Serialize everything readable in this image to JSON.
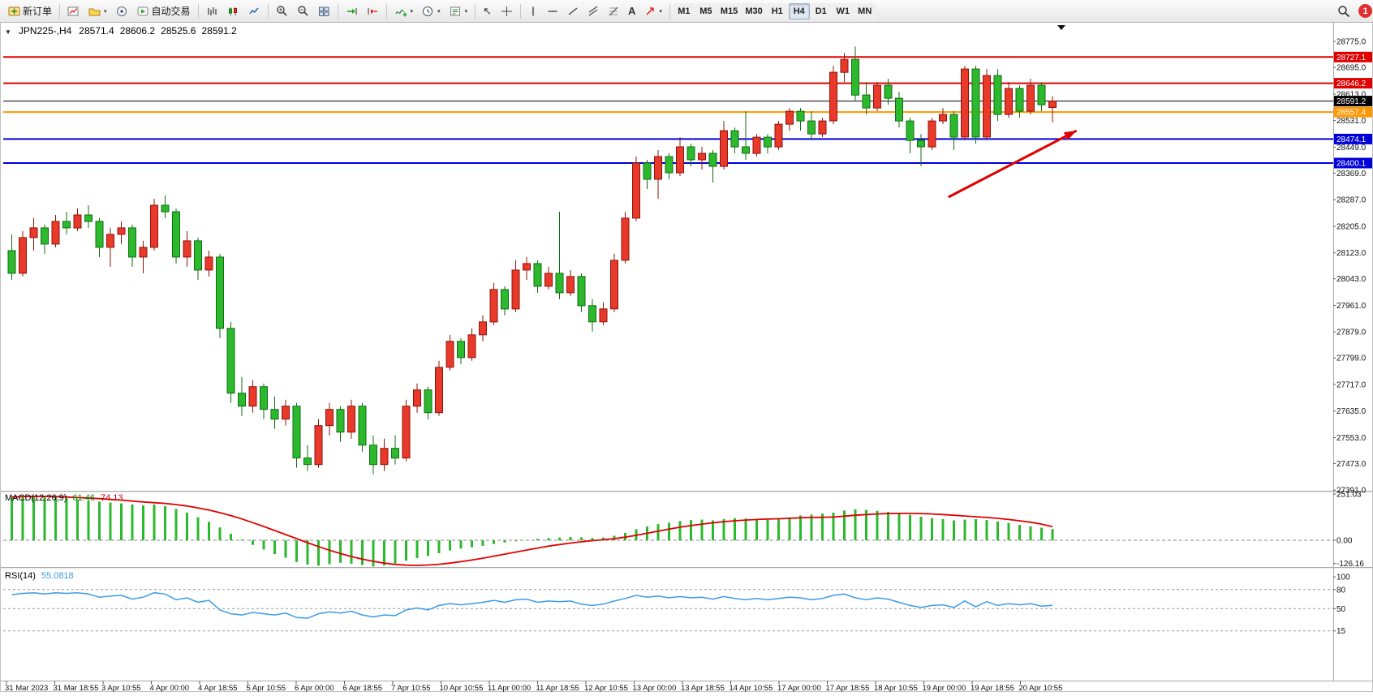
{
  "toolbar": {
    "new_order_label": "新订单",
    "auto_trading_label": "自动交易",
    "timeframes": [
      "M1",
      "M5",
      "M15",
      "M30",
      "H1",
      "H4",
      "D1",
      "W1",
      "MN"
    ],
    "active_timeframe": "H4",
    "notification_count": "1"
  },
  "chart": {
    "symbol_period": "JPN225-,H4",
    "open": "28571.4",
    "high": "28606.2",
    "low": "28525.6",
    "close": "28591.2"
  },
  "indicators": {
    "macd": {
      "name": "MACD(12,26,9)",
      "value1": "61.46",
      "value2": "74.13"
    },
    "rsi": {
      "name": "RSI(14)",
      "value": "55.0818"
    }
  },
  "chart_data": {
    "type": "candlestick",
    "symbol": "JPN225-",
    "timeframe": "H4",
    "colors": {
      "up": "#e8392b",
      "up_border": "#8f140a",
      "down": "#2db92d",
      "down_border": "#0f6e12",
      "macd_hist": "#2db92d",
      "macd_signal": "#e00000",
      "rsi": "#3d9ae8",
      "arrow": "#e00000"
    },
    "price_axis": {
      "max": 28833,
      "min": 27389,
      "ticks": [
        "28775.0",
        "28695.0",
        "28613.0",
        "28531.0",
        "28449.0",
        "28369.0",
        "28287.0",
        "28205.0",
        "28123.0",
        "28043.0",
        "27961.0",
        "27879.0",
        "27799.0",
        "27717.0",
        "27635.0",
        "27553.0",
        "27473.0",
        "27391.0"
      ]
    },
    "hlines": [
      {
        "price": 28727.1,
        "label": "28727.1",
        "color": "#e00000",
        "width": 2
      },
      {
        "price": 28646.2,
        "label": "28646.2",
        "color": "#e00000",
        "width": 2
      },
      {
        "price": 28591.2,
        "label": "28591.2",
        "color": "#000000",
        "width": 1
      },
      {
        "price": 28557.4,
        "label": "28557.4",
        "color": "#ff9800",
        "width": 2
      },
      {
        "price": 28474.1,
        "label": "28474.1",
        "color": "#0000d8",
        "width": 2
      },
      {
        "price": 28400.1,
        "label": "28400.1",
        "color": "#0000d8",
        "width": 2
      }
    ],
    "candles": [
      [
        28130,
        28180,
        28040,
        28060
      ],
      [
        28060,
        28190,
        28050,
        28170
      ],
      [
        28170,
        28230,
        28130,
        28200
      ],
      [
        28200,
        28210,
        28120,
        28150
      ],
      [
        28150,
        28240,
        28140,
        28220
      ],
      [
        28220,
        28250,
        28180,
        28200
      ],
      [
        28200,
        28260,
        28190,
        28240
      ],
      [
        28240,
        28270,
        28200,
        28220
      ],
      [
        28220,
        28230,
        28110,
        28140
      ],
      [
        28140,
        28200,
        28080,
        28180
      ],
      [
        28180,
        28220,
        28150,
        28200
      ],
      [
        28200,
        28210,
        28080,
        28110
      ],
      [
        28110,
        28160,
        28060,
        28140
      ],
      [
        28140,
        28290,
        28130,
        28270
      ],
      [
        28270,
        28300,
        28230,
        28250
      ],
      [
        28250,
        28260,
        28090,
        28110
      ],
      [
        28110,
        28190,
        28080,
        28160
      ],
      [
        28160,
        28170,
        28040,
        28070
      ],
      [
        28070,
        28130,
        28050,
        28110
      ],
      [
        28110,
        28120,
        27860,
        27890
      ],
      [
        27890,
        27910,
        27660,
        27690
      ],
      [
        27690,
        27740,
        27620,
        27650
      ],
      [
        27650,
        27730,
        27630,
        27710
      ],
      [
        27710,
        27720,
        27610,
        27640
      ],
      [
        27640,
        27680,
        27580,
        27610
      ],
      [
        27610,
        27670,
        27590,
        27650
      ],
      [
        27650,
        27660,
        27460,
        27490
      ],
      [
        27490,
        27530,
        27450,
        27470
      ],
      [
        27470,
        27610,
        27460,
        27590
      ],
      [
        27590,
        27660,
        27560,
        27640
      ],
      [
        27640,
        27650,
        27540,
        27570
      ],
      [
        27570,
        27670,
        27550,
        27650
      ],
      [
        27650,
        27660,
        27510,
        27530
      ],
      [
        27530,
        27560,
        27440,
        27470
      ],
      [
        27470,
        27550,
        27450,
        27520
      ],
      [
        27520,
        27560,
        27470,
        27490
      ],
      [
        27490,
        27670,
        27480,
        27650
      ],
      [
        27650,
        27720,
        27630,
        27700
      ],
      [
        27700,
        27710,
        27610,
        27630
      ],
      [
        27630,
        27790,
        27620,
        27770
      ],
      [
        27770,
        27870,
        27760,
        27850
      ],
      [
        27850,
        27860,
        27780,
        27800
      ],
      [
        27800,
        27890,
        27790,
        27870
      ],
      [
        27870,
        27930,
        27850,
        27910
      ],
      [
        27910,
        28030,
        27900,
        28010
      ],
      [
        28010,
        28020,
        27930,
        27950
      ],
      [
        27950,
        28100,
        27940,
        28070
      ],
      [
        28070,
        28110,
        28040,
        28090
      ],
      [
        28090,
        28100,
        28000,
        28020
      ],
      [
        28020,
        28080,
        28010,
        28060
      ],
      [
        28060,
        28250,
        27980,
        28000
      ],
      [
        28000,
        28070,
        27990,
        28050
      ],
      [
        28050,
        28060,
        27940,
        27960
      ],
      [
        27960,
        27980,
        27880,
        27910
      ],
      [
        27910,
        27970,
        27900,
        27950
      ],
      [
        27950,
        28120,
        27940,
        28100
      ],
      [
        28100,
        28250,
        28090,
        28230
      ],
      [
        28230,
        28420,
        28220,
        28400
      ],
      [
        28400,
        28410,
        28320,
        28350
      ],
      [
        28350,
        28440,
        28290,
        28420
      ],
      [
        28420,
        28430,
        28350,
        28370
      ],
      [
        28370,
        28480,
        28360,
        28450
      ],
      [
        28450,
        28460,
        28390,
        28410
      ],
      [
        28410,
        28450,
        28380,
        28430
      ],
      [
        28430,
        28440,
        28340,
        28390
      ],
      [
        28390,
        28530,
        28380,
        28500
      ],
      [
        28500,
        28510,
        28430,
        28450
      ],
      [
        28450,
        28560,
        28410,
        28430
      ],
      [
        28430,
        28490,
        28420,
        28480
      ],
      [
        28480,
        28490,
        28430,
        28450
      ],
      [
        28450,
        28530,
        28440,
        28520
      ],
      [
        28520,
        28570,
        28500,
        28560
      ],
      [
        28560,
        28570,
        28500,
        28530
      ],
      [
        28530,
        28560,
        28470,
        28490
      ],
      [
        28490,
        28540,
        28480,
        28530
      ],
      [
        28530,
        28700,
        28520,
        28680
      ],
      [
        28680,
        28740,
        28650,
        28720
      ],
      [
        28720,
        28760,
        28590,
        28610
      ],
      [
        28610,
        28650,
        28550,
        28570
      ],
      [
        28570,
        28650,
        28560,
        28640
      ],
      [
        28640,
        28660,
        28580,
        28600
      ],
      [
        28600,
        28620,
        28510,
        28530
      ],
      [
        28530,
        28540,
        28430,
        28470
      ],
      [
        28470,
        28490,
        28390,
        28450
      ],
      [
        28450,
        28540,
        28440,
        28530
      ],
      [
        28530,
        28570,
        28520,
        28550
      ],
      [
        28550,
        28560,
        28440,
        28480
      ],
      [
        28480,
        28700,
        28470,
        28690
      ],
      [
        28690,
        28700,
        28460,
        28480
      ],
      [
        28480,
        28690,
        28470,
        28670
      ],
      [
        28670,
        28690,
        28530,
        28550
      ],
      [
        28550,
        28650,
        28540,
        28630
      ],
      [
        28630,
        28640,
        28540,
        28560
      ],
      [
        28560,
        28660,
        28550,
        28640
      ],
      [
        28640,
        28650,
        28560,
        28580
      ],
      [
        28571.4,
        28606.2,
        28525.6,
        28591.2
      ]
    ],
    "macd": {
      "max": 260,
      "min": -145,
      "ticks": [
        {
          "v": 251.03,
          "label": "251.03"
        },
        {
          "v": 0,
          "label": "0.00"
        },
        {
          "v": -126.16,
          "label": "-126.16"
        }
      ],
      "histogram": [
        230,
        238,
        242,
        240,
        235,
        228,
        222,
        215,
        210,
        205,
        200,
        195,
        190,
        195,
        185,
        170,
        150,
        125,
        100,
        70,
        35,
        5,
        -25,
        -50,
        -75,
        -95,
        -118,
        -132,
        -138,
        -130,
        -122,
        -127,
        -134,
        -142,
        -136,
        -126,
        -111,
        -96,
        -85,
        -70,
        -55,
        -45,
        -38,
        -30,
        -20,
        -12,
        -5,
        2,
        8,
        12,
        15,
        18,
        16,
        12,
        15,
        25,
        40,
        60,
        75,
        88,
        95,
        105,
        110,
        112,
        108,
        115,
        120,
        118,
        115,
        112,
        118,
        125,
        135,
        140,
        145,
        150,
        162,
        168,
        165,
        160,
        155,
        148,
        138,
        128,
        120,
        115,
        108,
        112,
        115,
        110,
        102,
        94,
        84,
        76,
        68,
        61.46
      ],
      "signal": [
        235,
        237,
        238,
        238,
        237,
        235,
        232,
        229,
        226,
        222,
        218,
        213,
        208,
        204,
        200,
        194,
        186,
        176,
        164,
        150,
        134,
        116,
        96,
        75,
        53,
        31,
        9,
        -13,
        -34,
        -54,
        -72,
        -88,
        -102,
        -114,
        -124,
        -131,
        -135,
        -136,
        -134,
        -130,
        -124,
        -116,
        -107,
        -97,
        -86,
        -75,
        -64,
        -53,
        -42,
        -32,
        -23,
        -15,
        -8,
        -2,
        3,
        9,
        17,
        27,
        38,
        50,
        61,
        71,
        80,
        88,
        95,
        101,
        106,
        110,
        113,
        115,
        117,
        119,
        122,
        124,
        125,
        126,
        131,
        136,
        140,
        143,
        145,
        146,
        146,
        145,
        143,
        140,
        136,
        132,
        128,
        124,
        119,
        113,
        106,
        98,
        88,
        74.13
      ]
    },
    "rsi": {
      "max": 113,
      "min": -62,
      "levels": [
        {
          "v": 100,
          "label": "100",
          "dash": false
        },
        {
          "v": 80,
          "label": "80",
          "dash": true
        },
        {
          "v": 50,
          "label": "50",
          "dash": true
        },
        {
          "v": 15,
          "label": "15",
          "dash": true
        }
      ],
      "values": [
        72,
        74,
        75,
        73,
        75,
        74,
        75,
        73,
        68,
        70,
        71,
        65,
        68,
        75,
        73,
        64,
        67,
        60,
        63,
        48,
        42,
        40,
        44,
        42,
        40,
        43,
        36,
        35,
        42,
        45,
        43,
        46,
        40,
        37,
        40,
        39,
        48,
        51,
        48,
        55,
        58,
        56,
        58,
        60,
        63,
        60,
        64,
        65,
        60,
        62,
        61,
        62,
        57,
        55,
        57,
        62,
        66,
        71,
        68,
        70,
        67,
        69,
        67,
        68,
        65,
        69,
        66,
        64,
        66,
        64,
        66,
        68,
        67,
        64,
        66,
        71,
        73,
        67,
        64,
        67,
        65,
        60,
        55,
        52,
        55,
        56,
        52,
        62,
        53,
        61,
        55,
        58,
        56,
        58,
        54,
        55.08
      ]
    },
    "arrow": {
      "from_bar": 85.5,
      "from_price": 28295,
      "to_bar": 97.2,
      "to_price": 28500,
      "color": "#e00000"
    },
    "time_axis": {
      "labels": [
        "31 Mar 2023",
        "31 Mar 18:55",
        "3 Apr 10:55",
        "4 Apr 00:00",
        "4 Apr 18:55",
        "5 Apr 10:55",
        "6 Apr 00:00",
        "6 Apr 18:55",
        "7 Apr 10:55",
        "10 Apr 10:55",
        "11 Apr 00:00",
        "11 Apr 18:55",
        "12 Apr 10:55",
        "13 Apr 00:00",
        "13 Apr 18:55",
        "14 Apr 10:55",
        "17 Apr 00:00",
        "17 Apr 18:55",
        "18 Apr 10:55",
        "19 Apr 00:00",
        "19 Apr 18:55",
        "20 Apr 10:55"
      ]
    }
  }
}
